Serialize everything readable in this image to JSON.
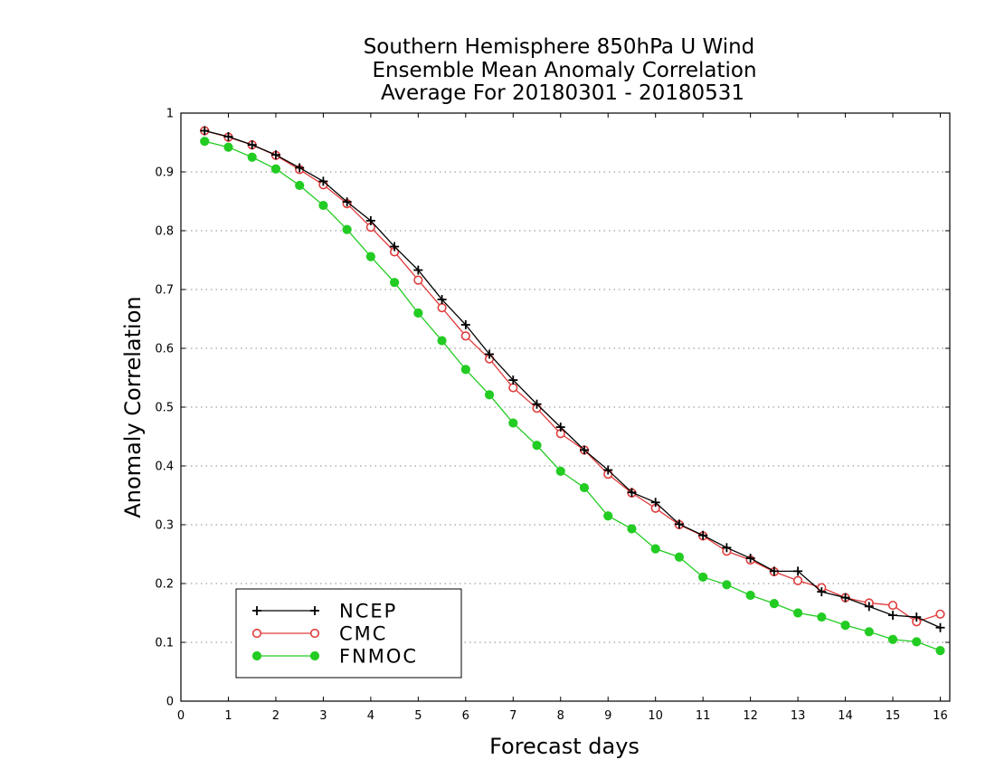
{
  "chart_data": {
    "type": "line",
    "title": [
      "Southern Hemisphere 850hPa U Wind",
      "Ensemble Mean Anomaly Correlation",
      "Average For 20180301 - 20180531"
    ],
    "xlabel": "Forecast days",
    "ylabel": "Anomaly Correlation",
    "xlim": [
      0,
      16.2
    ],
    "ylim": [
      0,
      1
    ],
    "xticks": [
      0,
      1,
      2,
      3,
      4,
      5,
      6,
      7,
      8,
      9,
      10,
      11,
      12,
      13,
      14,
      15,
      16
    ],
    "yticks": [
      0,
      0.1,
      0.2,
      0.3,
      0.4,
      0.5,
      0.6,
      0.7,
      0.8,
      0.9,
      1
    ],
    "ytick_labels": [
      "0",
      "0.1",
      "0.2",
      "0.3",
      "0.4",
      "0.5",
      "0.6",
      "0.7",
      "0.8",
      "0.9",
      "1"
    ],
    "grid": "horizontal dotted",
    "legend_position": "bottom-left",
    "x": [
      0.5,
      1,
      1.5,
      2,
      2.5,
      3,
      3.5,
      4,
      4.5,
      5,
      5.5,
      6,
      6.5,
      7,
      7.5,
      8,
      8.5,
      9,
      9.5,
      10,
      10.5,
      11,
      11.5,
      12,
      12.5,
      13,
      13.5,
      14,
      14.5,
      15,
      15.5,
      16
    ],
    "series": [
      {
        "name": "NCEP",
        "color": "#000000",
        "marker": "plus",
        "values": [
          0.97,
          0.96,
          0.946,
          0.929,
          0.907,
          0.884,
          0.849,
          0.817,
          0.773,
          0.733,
          0.683,
          0.64,
          0.59,
          0.546,
          0.505,
          0.466,
          0.427,
          0.393,
          0.355,
          0.338,
          0.301,
          0.282,
          0.261,
          0.243,
          0.221,
          0.221,
          0.186,
          0.176,
          0.161,
          0.146,
          0.143,
          0.125
        ]
      },
      {
        "name": "CMC",
        "color": "#e03c3c",
        "marker": "open-circle",
        "values": [
          0.97,
          0.959,
          0.946,
          0.928,
          0.904,
          0.878,
          0.846,
          0.806,
          0.764,
          0.716,
          0.669,
          0.621,
          0.582,
          0.533,
          0.498,
          0.455,
          0.427,
          0.386,
          0.354,
          0.328,
          0.3,
          0.281,
          0.255,
          0.24,
          0.22,
          0.205,
          0.193,
          0.176,
          0.167,
          0.163,
          0.135,
          0.148
        ]
      },
      {
        "name": "FNMOC",
        "color": "#22cc22",
        "marker": "filled-circle",
        "values": [
          0.952,
          0.942,
          0.925,
          0.905,
          0.877,
          0.843,
          0.802,
          0.756,
          0.712,
          0.66,
          0.613,
          0.564,
          0.521,
          0.473,
          0.435,
          0.391,
          0.363,
          0.315,
          0.293,
          0.259,
          0.245,
          0.211,
          0.198,
          0.18,
          0.166,
          0.15,
          0.143,
          0.129,
          0.118,
          0.105,
          0.101,
          0.086
        ]
      }
    ]
  }
}
